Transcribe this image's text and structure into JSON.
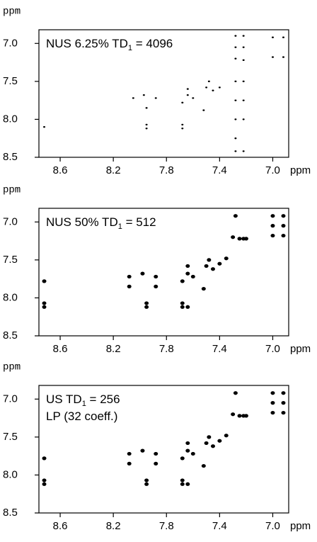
{
  "chart_data": [
    {
      "type": "scatter",
      "ylabel": "ppm",
      "xlabel": "ppm",
      "color": "#000000",
      "annotations": [
        {
          "text": "NUS 6.25% TD",
          "sub": "1",
          "after": " = 4096"
        }
      ],
      "x": [
        8.72,
        8.05,
        7.97,
        7.95,
        7.95,
        7.95,
        7.88,
        7.68,
        7.68,
        7.68,
        7.64,
        7.64,
        7.6,
        7.52,
        7.5,
        7.48,
        7.45,
        7.4,
        7.28,
        7.28,
        7.28,
        7.28,
        7.28,
        7.28,
        7.28,
        7.28,
        7.22,
        7.22,
        7.22,
        7.22,
        7.22,
        7.22,
        7.22,
        7.0,
        7.0,
        6.92,
        6.92
      ],
      "y": [
        8.1,
        7.72,
        7.68,
        7.85,
        8.07,
        8.12,
        7.72,
        7.78,
        8.07,
        8.12,
        7.6,
        7.68,
        7.72,
        7.88,
        7.58,
        7.5,
        7.62,
        7.58,
        6.9,
        7.05,
        7.2,
        7.5,
        7.75,
        8.0,
        8.25,
        8.42,
        6.9,
        7.05,
        7.22,
        7.5,
        7.75,
        8.0,
        8.42,
        6.92,
        7.18,
        6.92,
        7.18
      ],
      "xlim": [
        8.76,
        6.88
      ],
      "ylim": [
        6.82,
        8.5
      ],
      "xticks": [
        8.6,
        8.2,
        7.8,
        7.4,
        {
          "value": 7,
          "label": "7.0"
        }
      ],
      "yticks": [
        {
          "value": 7,
          "label": "7.0"
        },
        7.5,
        {
          "value": 8,
          "label": "8.0"
        },
        8.5
      ]
    },
    {
      "type": "scatter",
      "ylabel": "ppm",
      "xlabel": "ppm",
      "color": "#000000",
      "annotations": [
        {
          "text": "NUS 50% TD",
          "sub": "1",
          "after": " = 512"
        }
      ],
      "x": [
        8.72,
        8.72,
        8.72,
        8.08,
        8.08,
        7.98,
        7.95,
        7.95,
        7.88,
        7.88,
        7.68,
        7.68,
        7.68,
        7.64,
        7.64,
        7.64,
        7.6,
        7.52,
        7.5,
        7.48,
        7.45,
        7.4,
        7.35,
        7.3,
        7.28,
        7.25,
        7.22,
        7.2,
        7.0,
        7.0,
        7.0,
        6.92,
        6.92,
        6.92
      ],
      "y": [
        7.78,
        8.07,
        8.12,
        7.72,
        7.85,
        7.68,
        8.07,
        8.12,
        7.72,
        7.85,
        7.78,
        8.07,
        8.12,
        7.58,
        7.68,
        8.12,
        7.72,
        7.88,
        7.58,
        7.5,
        7.62,
        7.55,
        7.48,
        7.2,
        6.92,
        7.22,
        7.22,
        7.22,
        6.92,
        7.05,
        7.18,
        6.92,
        7.05,
        7.18
      ],
      "xlim": [
        8.76,
        6.88
      ],
      "ylim": [
        6.82,
        8.5
      ],
      "xticks": [
        8.6,
        8.2,
        7.8,
        7.4,
        {
          "value": 7,
          "label": "7.0"
        }
      ],
      "yticks": [
        {
          "value": 7,
          "label": "7.0"
        },
        7.5,
        {
          "value": 8,
          "label": "8.0"
        },
        8.5
      ]
    },
    {
      "type": "scatter",
      "ylabel": "ppm",
      "xlabel": "ppm",
      "color": "#000000",
      "annotations": [
        {
          "text": "US TD",
          "sub": "1",
          "after": " = 256"
        },
        {
          "text": "LP (32 coeff.)"
        }
      ],
      "x": [
        8.72,
        8.72,
        8.72,
        8.08,
        8.08,
        7.98,
        7.95,
        7.95,
        7.88,
        7.88,
        7.68,
        7.68,
        7.68,
        7.64,
        7.64,
        7.64,
        7.6,
        7.52,
        7.5,
        7.48,
        7.45,
        7.4,
        7.35,
        7.3,
        7.28,
        7.25,
        7.22,
        7.2,
        7.0,
        7.0,
        7.0,
        6.92,
        6.92,
        6.92
      ],
      "y": [
        7.78,
        8.07,
        8.12,
        7.72,
        7.85,
        7.68,
        8.07,
        8.12,
        7.72,
        7.85,
        7.78,
        8.07,
        8.12,
        7.58,
        7.68,
        8.12,
        7.72,
        7.88,
        7.58,
        7.5,
        7.62,
        7.55,
        7.48,
        7.2,
        6.92,
        7.22,
        7.22,
        7.22,
        6.92,
        7.05,
        7.18,
        6.92,
        7.05,
        7.18
      ],
      "xlim": [
        8.76,
        6.88
      ],
      "ylim": [
        6.82,
        8.5
      ],
      "xticks": [
        8.6,
        8.2,
        7.8,
        7.4,
        {
          "value": 7,
          "label": "7.0"
        }
      ],
      "yticks": [
        {
          "value": 7,
          "label": "7.0"
        },
        7.5,
        {
          "value": 8,
          "label": "8.0"
        },
        8.5
      ]
    }
  ]
}
